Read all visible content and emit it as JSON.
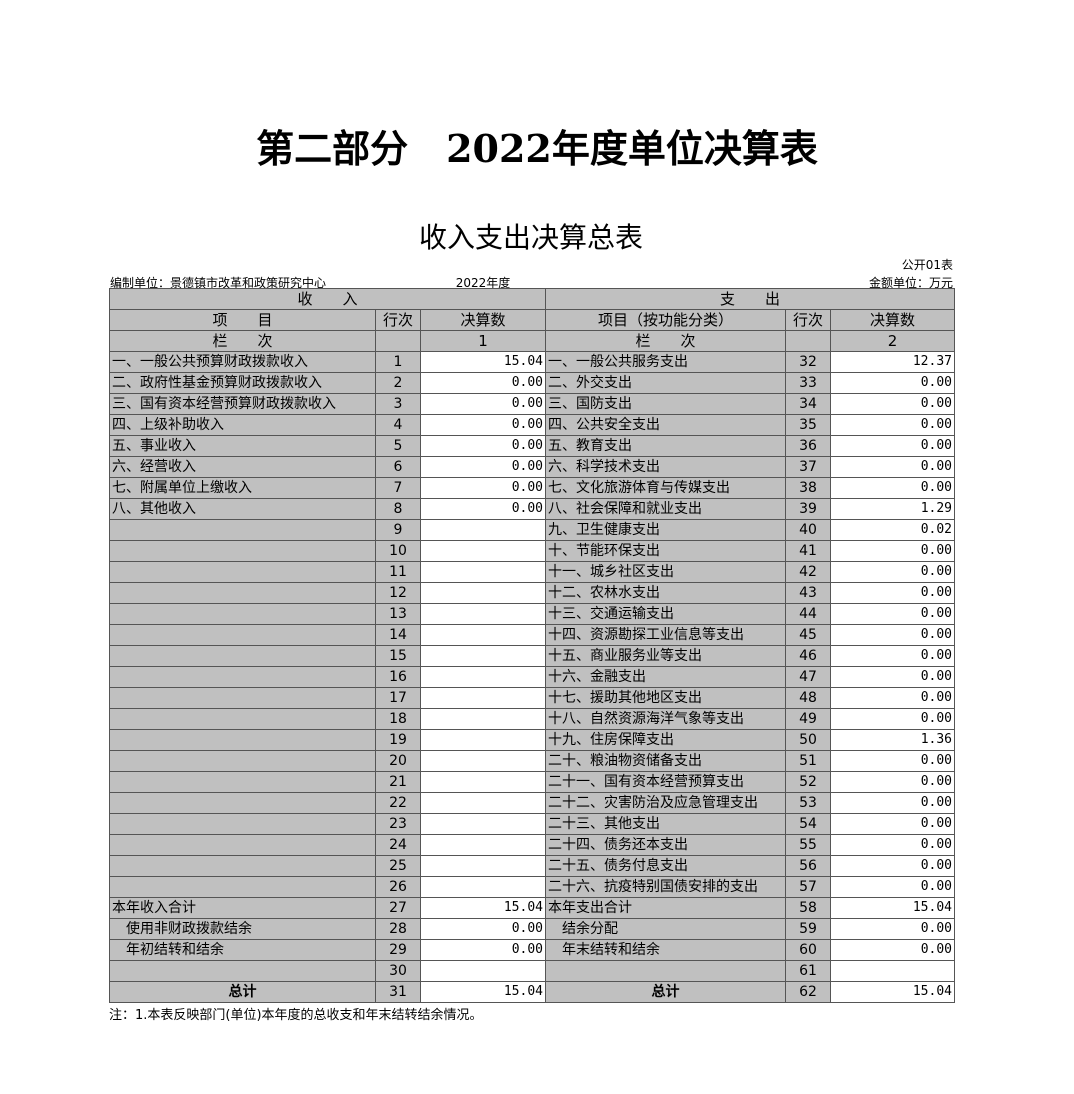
{
  "title": "第二部分　2022年度单位决算表",
  "subtitle": "收入支出决算总表",
  "form_no": "公开01表",
  "unit": "编制单位：景德镇市改革和政策研究中心",
  "year": "2022年度",
  "currency": "金额单位：万元",
  "headers": {
    "income": "收　　入",
    "expense": "支　　出",
    "item": "项　　目",
    "row_no": "行次",
    "amount": "决算数",
    "exp_item": "项目（按功能分类）",
    "col": "栏　　次",
    "col1": "1",
    "col2": "2"
  },
  "rows": [
    [
      "一、一般公共预算财政拨款收入",
      "1",
      "15.04",
      "一、一般公共服务支出",
      "32",
      "12.37"
    ],
    [
      "二、政府性基金预算财政拨款收入",
      "2",
      "0.00",
      "二、外交支出",
      "33",
      "0.00"
    ],
    [
      "三、国有资本经营预算财政拨款收入",
      "3",
      "0.00",
      "三、国防支出",
      "34",
      "0.00"
    ],
    [
      "四、上级补助收入",
      "4",
      "0.00",
      "四、公共安全支出",
      "35",
      "0.00"
    ],
    [
      "五、事业收入",
      "5",
      "0.00",
      "五、教育支出",
      "36",
      "0.00"
    ],
    [
      "六、经营收入",
      "6",
      "0.00",
      "六、科学技术支出",
      "37",
      "0.00"
    ],
    [
      "七、附属单位上缴收入",
      "7",
      "0.00",
      "七、文化旅游体育与传媒支出",
      "38",
      "0.00"
    ],
    [
      "八、其他收入",
      "8",
      "0.00",
      "八、社会保障和就业支出",
      "39",
      "1.29"
    ],
    [
      "",
      "9",
      "",
      "九、卫生健康支出",
      "40",
      "0.02"
    ],
    [
      "",
      "10",
      "",
      "十、节能环保支出",
      "41",
      "0.00"
    ],
    [
      "",
      "11",
      "",
      "十一、城乡社区支出",
      "42",
      "0.00"
    ],
    [
      "",
      "12",
      "",
      "十二、农林水支出",
      "43",
      "0.00"
    ],
    [
      "",
      "13",
      "",
      "十三、交通运输支出",
      "44",
      "0.00"
    ],
    [
      "",
      "14",
      "",
      "十四、资源勘探工业信息等支出",
      "45",
      "0.00"
    ],
    [
      "",
      "15",
      "",
      "十五、商业服务业等支出",
      "46",
      "0.00"
    ],
    [
      "",
      "16",
      "",
      "十六、金融支出",
      "47",
      "0.00"
    ],
    [
      "",
      "17",
      "",
      "十七、援助其他地区支出",
      "48",
      "0.00"
    ],
    [
      "",
      "18",
      "",
      "十八、自然资源海洋气象等支出",
      "49",
      "0.00"
    ],
    [
      "",
      "19",
      "",
      "十九、住房保障支出",
      "50",
      "1.36"
    ],
    [
      "",
      "20",
      "",
      "二十、粮油物资储备支出",
      "51",
      "0.00"
    ],
    [
      "",
      "21",
      "",
      "二十一、国有资本经营预算支出",
      "52",
      "0.00"
    ],
    [
      "",
      "22",
      "",
      "二十二、灾害防治及应急管理支出",
      "53",
      "0.00"
    ],
    [
      "",
      "23",
      "",
      "二十三、其他支出",
      "54",
      "0.00"
    ],
    [
      "",
      "24",
      "",
      "二十四、债务还本支出",
      "55",
      "0.00"
    ],
    [
      "",
      "25",
      "",
      "二十五、债务付息支出",
      "56",
      "0.00"
    ],
    [
      "",
      "26",
      "",
      "二十六、抗疫特别国债安排的支出",
      "57",
      "0.00"
    ],
    [
      "本年收入合计",
      "27",
      "15.04",
      "本年支出合计",
      "58",
      "15.04"
    ],
    [
      "　使用非财政拨款结余",
      "28",
      "0.00",
      "　结余分配",
      "59",
      "0.00"
    ],
    [
      "　年初结转和结余",
      "29",
      "0.00",
      "　年末结转和结余",
      "60",
      "0.00"
    ],
    [
      "",
      "30",
      "",
      "",
      "61",
      ""
    ],
    [
      "总计",
      "31",
      "15.04",
      "总计",
      "62",
      "15.04"
    ]
  ],
  "note": "注：1.本表反映部门(单位)本年度的总收支和年末结转结余情况。"
}
